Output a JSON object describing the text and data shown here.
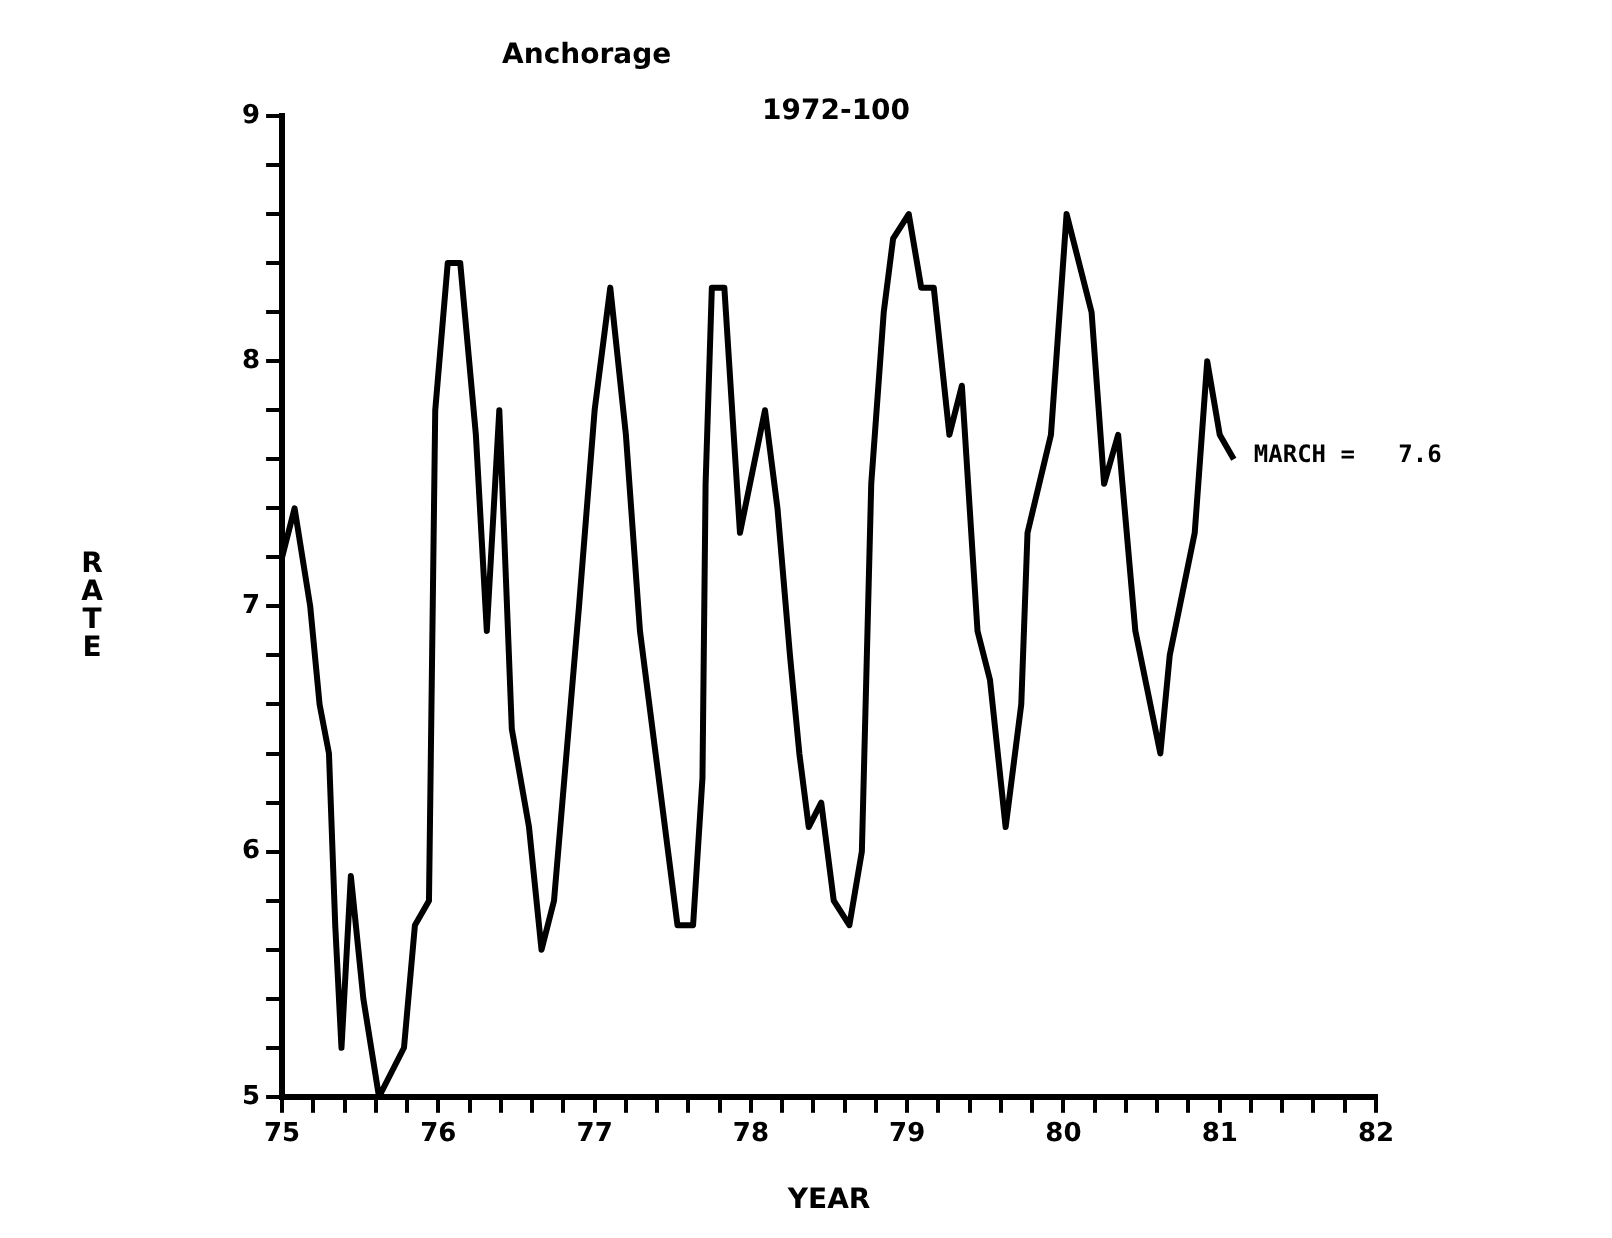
{
  "chart_data": {
    "type": "line",
    "title": "Anchorage",
    "subtitle": "1972-100",
    "xlabel": "YEAR",
    "ylabel": "RATE",
    "xlim": [
      75,
      82
    ],
    "ylim": [
      5,
      9
    ],
    "xticks": [
      75,
      {
        "value": 75.2,
        "label": null
      },
      {
        "value": 75.4,
        "label": null
      },
      {
        "value": 75.6,
        "label": null
      },
      {
        "value": 75.8,
        "label": null
      },
      76,
      {
        "value": 76.2,
        "label": null
      },
      {
        "value": 76.4,
        "label": null
      },
      {
        "value": 76.6,
        "label": null
      },
      {
        "value": 76.8,
        "label": null
      },
      77,
      {
        "value": 77.2,
        "label": null
      },
      {
        "value": 77.4,
        "label": null
      },
      {
        "value": 77.6,
        "label": null
      },
      {
        "value": 77.8,
        "label": null
      },
      78,
      {
        "value": 78.2,
        "label": null
      },
      {
        "value": 78.4,
        "label": null
      },
      {
        "value": 78.6,
        "label": null
      },
      {
        "value": 78.8,
        "label": null
      },
      79,
      {
        "value": 79.2,
        "label": null
      },
      {
        "value": 79.4,
        "label": null
      },
      {
        "value": 79.6,
        "label": null
      },
      {
        "value": 79.8,
        "label": null
      },
      80,
      {
        "value": 80.2,
        "label": null
      },
      {
        "value": 80.4,
        "label": null
      },
      {
        "value": 80.6,
        "label": null
      },
      {
        "value": 80.8,
        "label": null
      },
      81,
      {
        "value": 81.2,
        "label": null
      },
      {
        "value": 81.4,
        "label": null
      },
      {
        "value": 81.6,
        "label": null
      },
      {
        "value": 81.8,
        "label": null
      },
      82
    ],
    "yticks": [
      5,
      {
        "value": 5.2,
        "label": null
      },
      {
        "value": 5.4,
        "label": null
      },
      {
        "value": 5.6,
        "label": null
      },
      {
        "value": 5.8,
        "label": null
      },
      6,
      {
        "value": 6.2,
        "label": null
      },
      {
        "value": 6.4,
        "label": null
      },
      {
        "value": 6.6,
        "label": null
      },
      {
        "value": 6.8,
        "label": null
      },
      7,
      {
        "value": 7.2,
        "label": null
      },
      {
        "value": 7.4,
        "label": null
      },
      {
        "value": 7.6,
        "label": null
      },
      {
        "value": 7.8,
        "label": null
      },
      8,
      {
        "value": 8.2,
        "label": null
      },
      {
        "value": 8.4,
        "label": null
      },
      {
        "value": 8.6,
        "label": null
      },
      {
        "value": 8.8,
        "label": null
      },
      9
    ],
    "grid": false,
    "legend": false,
    "marker": "none",
    "line_style": "solid",
    "annotations": [
      {
        "text": "MARCH =   7.6",
        "x": 81.09,
        "y": 7.6
      }
    ],
    "series": [
      {
        "color": "#000000",
        "x": [
          75.0,
          75.08,
          75.18,
          75.24,
          75.3,
          75.34,
          75.38,
          75.44,
          75.52,
          75.62,
          75.78,
          75.85,
          75.94,
          75.98,
          76.06,
          76.14,
          76.24,
          76.31,
          76.39,
          76.47,
          76.58,
          76.66,
          76.74,
          76.9,
          77.0,
          77.1,
          77.2,
          77.29,
          77.39,
          77.47,
          77.53,
          77.63,
          77.69,
          77.71,
          77.75,
          77.83,
          77.93,
          78.09,
          78.17,
          78.25,
          78.31,
          78.37,
          78.45,
          78.53,
          78.63,
          78.71,
          78.77,
          78.85,
          78.91,
          79.01,
          79.09,
          79.17,
          79.27,
          79.35,
          79.45,
          79.53,
          79.63,
          79.73,
          79.77,
          79.92,
          80.02,
          80.18,
          80.26,
          80.35,
          80.46,
          80.62,
          80.68,
          80.84,
          80.92,
          81.0,
          81.09
        ],
        "values": [
          7.2,
          7.4,
          7.0,
          6.6,
          6.4,
          5.7,
          5.2,
          5.9,
          5.4,
          5.0,
          5.2,
          5.7,
          5.8,
          7.8,
          8.4,
          8.4,
          7.7,
          6.9,
          7.8,
          6.5,
          6.1,
          5.6,
          5.8,
          7.0,
          7.8,
          8.3,
          7.7,
          6.9,
          6.4,
          6.0,
          5.7,
          5.7,
          6.3,
          7.5,
          8.3,
          8.3,
          7.3,
          7.8,
          7.4,
          6.8,
          6.4,
          6.1,
          6.2,
          5.8,
          5.7,
          6.0,
          7.5,
          8.2,
          8.5,
          8.6,
          8.3,
          8.3,
          7.7,
          7.9,
          6.9,
          6.7,
          6.1,
          6.6,
          7.3,
          7.7,
          8.6,
          8.2,
          7.5,
          7.7,
          6.9,
          6.4,
          6.8,
          7.3,
          8.0,
          7.7,
          7.6
        ]
      }
    ]
  }
}
